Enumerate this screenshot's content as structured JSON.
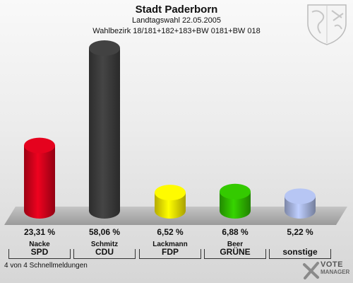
{
  "header": {
    "title": "Stadt Paderborn",
    "subtitle": "Landtagswahl 22.05.2005",
    "district": "Wahlbezirk 18/181+182+183+BW 0181+BW 018"
  },
  "chart_data": {
    "type": "bar",
    "categories": [
      "SPD",
      "CDU",
      "FDP",
      "GRÜNE",
      "sonstige"
    ],
    "candidates": [
      "Nacke",
      "Schmitz",
      "Lackmann",
      "Beer",
      ""
    ],
    "values": [
      23.31,
      58.06,
      6.52,
      6.88,
      5.22
    ],
    "value_labels": [
      "23,31 %",
      "58,06 %",
      "6,52 %",
      "6,88 %",
      "5,22 %"
    ],
    "colors": [
      "#d0021b",
      "#3c3c3c",
      "#f2e400",
      "#2fb800",
      "#a6b4de"
    ],
    "ylim": [
      0,
      60
    ],
    "grid": false
  },
  "footer": {
    "text": "4 von 4 Schnellmeldungen"
  },
  "logo": {
    "line1": "VOTE",
    "line2": "MANAGER"
  }
}
